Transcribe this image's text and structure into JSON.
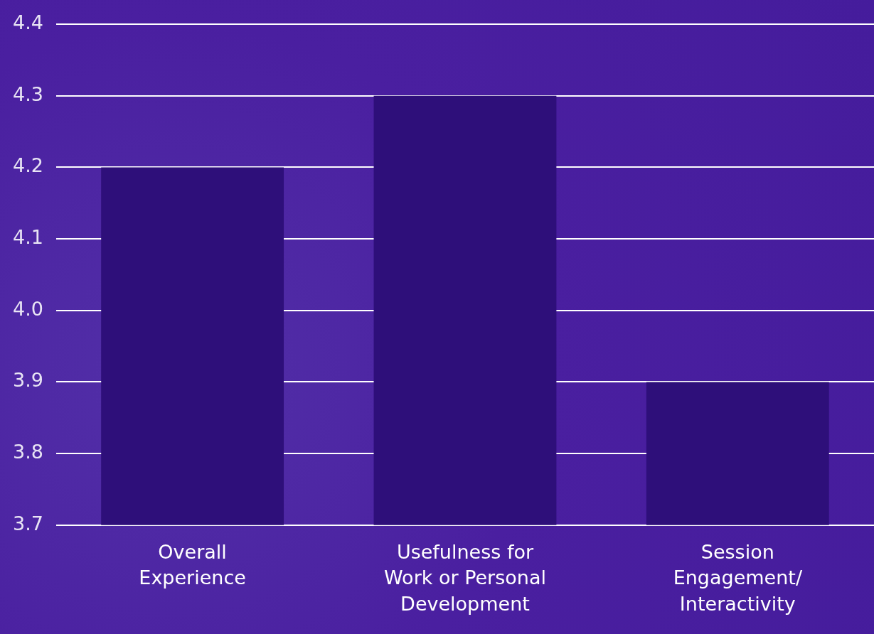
{
  "chart_data": {
    "type": "bar",
    "categories": [
      "Overall Experience",
      "Usefulness for Work or Personal Development",
      "Session Engagement/ Interactivity"
    ],
    "values": [
      4.2,
      4.3,
      3.9
    ],
    "color": "#2e0f7a",
    "ylim": [
      3.7,
      4.4
    ],
    "yticks": [
      {
        "value": 3.7,
        "label": "3.7"
      },
      {
        "value": 3.8,
        "label": "3.8"
      },
      {
        "value": 3.9,
        "label": "3.9"
      },
      {
        "value": 4.0,
        "label": "4.0"
      },
      {
        "value": 4.1,
        "label": "4.1"
      },
      {
        "value": 4.2,
        "label": "4.2"
      },
      {
        "value": 4.3,
        "label": "4.3"
      },
      {
        "value": 4.4,
        "label": "4.4"
      }
    ],
    "grid": "y"
  }
}
